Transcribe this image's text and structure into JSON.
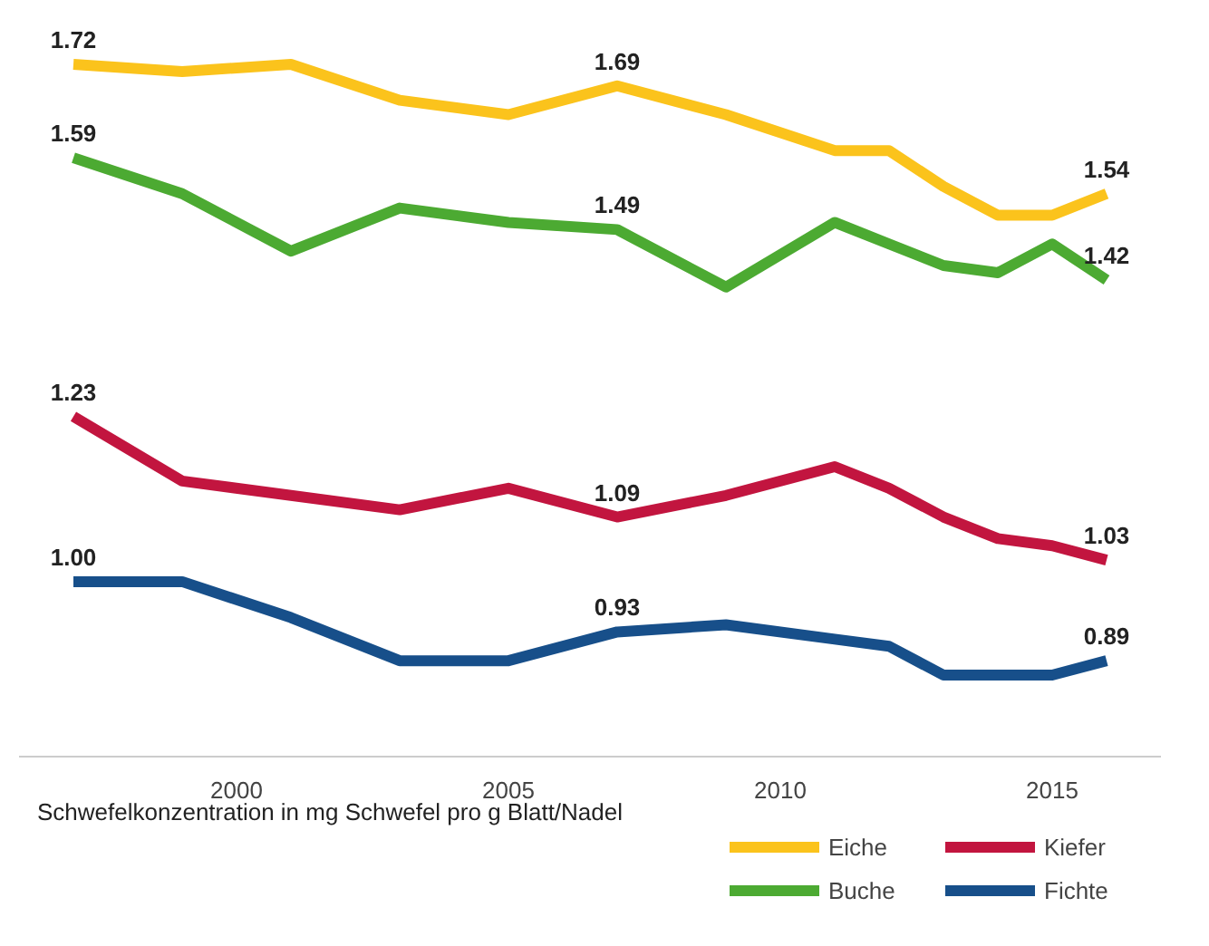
{
  "chart_data": {
    "type": "line",
    "x": [
      1997,
      1999,
      2001,
      2003,
      2005,
      2007,
      2009,
      2011,
      2012,
      2013,
      2014,
      2015,
      2016
    ],
    "xlim": [
      1996,
      2017
    ],
    "xticks": [
      2000,
      2005,
      2010,
      2015
    ],
    "grid": false,
    "legend": "bottom right",
    "marker": "none",
    "line_style": "solid",
    "series": [
      {
        "name": "Eiche",
        "color": "#fbc31c",
        "values": [
          1.72,
          1.71,
          1.72,
          1.67,
          1.65,
          1.69,
          1.65,
          1.6,
          1.6,
          1.55,
          1.51,
          1.51,
          1.54
        ],
        "value_labels": [
          "1.72",
          null,
          null,
          null,
          null,
          "1.69",
          null,
          null,
          null,
          null,
          null,
          null,
          "1.54"
        ]
      },
      {
        "name": "Buche",
        "color": "#4caa32",
        "values": [
          1.59,
          1.54,
          1.46,
          1.52,
          1.5,
          1.49,
          1.41,
          1.5,
          1.47,
          1.44,
          1.43,
          1.47,
          1.42
        ],
        "value_labels": [
          "1.59",
          null,
          null,
          null,
          null,
          "1.49",
          null,
          null,
          null,
          null,
          null,
          null,
          "1.42"
        ]
      },
      {
        "name": "Kiefer",
        "color": "#c2153f",
        "values": [
          1.23,
          1.14,
          1.12,
          1.1,
          1.13,
          1.09,
          1.12,
          1.16,
          1.13,
          1.09,
          1.06,
          1.05,
          1.03
        ],
        "value_labels": [
          "1.23",
          null,
          null,
          null,
          null,
          "1.09",
          null,
          null,
          null,
          null,
          null,
          null,
          "1.03"
        ]
      },
      {
        "name": "Fichte",
        "color": "#174f8a",
        "values": [
          1.0,
          1.0,
          0.95,
          0.89,
          0.89,
          0.93,
          0.94,
          0.92,
          0.91,
          0.87,
          0.87,
          0.87,
          0.89
        ],
        "value_labels": [
          "1.00",
          null,
          null,
          null,
          null,
          "0.93",
          null,
          null,
          null,
          null,
          null,
          null,
          "0.89"
        ]
      }
    ],
    "annotations": [
      "Schwefelkonzentration in mg Schwefel pro g Blatt/Nadel"
    ]
  }
}
